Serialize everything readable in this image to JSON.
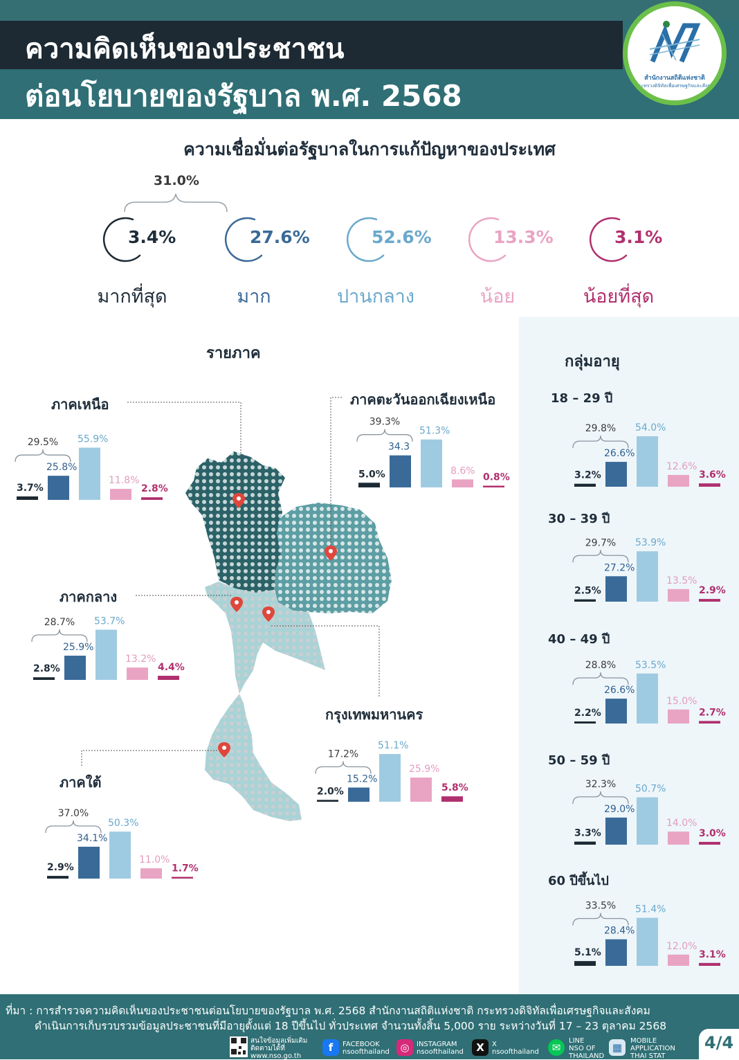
{
  "header": {
    "title_line1": "ความคิดเห็นของประชาชน",
    "title_line2": "ต่อนโยบายของรัฐบาล พ.ศ. 2568",
    "logo_text1": "สำนักงานสถิติแห่งชาติ",
    "logo_text2": "กระทรวงดิจิทัลเพื่อเศรษฐกิจและสังคม"
  },
  "subtitle": "ความเชื่อมั่นต่อรัฐบาลในการแก้ปัญหาของประเทศ",
  "overall": {
    "group_sum": "31.0%",
    "items": [
      {
        "value": "3.4%",
        "label": "มากที่สุด",
        "color": "#1d2a33"
      },
      {
        "value": "27.6%",
        "label": "มาก",
        "color": "#3a6a98"
      },
      {
        "value": "52.6%",
        "label": "ปานกลาง",
        "color": "#6aa8cc"
      },
      {
        "value": "13.3%",
        "label": "น้อย",
        "color": "#e9a4c3"
      },
      {
        "value": "3.1%",
        "label": "น้อยที่สุด",
        "color": "#b0306e"
      }
    ]
  },
  "colors": {
    "very_high": "#1d2a33",
    "high": "#3a6a98",
    "medium": "#9fcbe2",
    "low": "#e9a4c3",
    "very_low": "#b0306e",
    "header": "#2f6f75",
    "accent_green": "#6cc04a"
  },
  "sections": {
    "region": "รายภาค",
    "age": "กลุ่มอายุ"
  },
  "chart_data": [
    {
      "type": "bar",
      "group": "region",
      "title": "ภาคเหนือ",
      "values": [
        3.7,
        25.8,
        55.9,
        11.8,
        2.8
      ],
      "labels": [
        "3.7%",
        "25.8%",
        "55.9%",
        "11.8%",
        "2.8%"
      ],
      "sum_label": "29.5%"
    },
    {
      "type": "bar",
      "group": "region",
      "title": "ภาคตะวันออกเฉียงเหนือ",
      "values": [
        5.0,
        34.3,
        51.3,
        8.6,
        0.8
      ],
      "labels": [
        "5.0%",
        "34.3",
        "51.3%",
        "8.6%",
        "0.8%"
      ],
      "sum_label": "39.3%"
    },
    {
      "type": "bar",
      "group": "region",
      "title": "ภาคกลาง",
      "values": [
        2.8,
        25.9,
        53.7,
        13.2,
        4.4
      ],
      "labels": [
        "2.8%",
        "25.9%",
        "53.7%",
        "13.2%",
        "4.4%"
      ],
      "sum_label": "28.7%"
    },
    {
      "type": "bar",
      "group": "region",
      "title": "กรุงเทพมหานคร",
      "values": [
        2.0,
        15.2,
        51.1,
        25.9,
        5.8
      ],
      "labels": [
        "2.0%",
        "15.2%",
        "51.1%",
        "25.9%",
        "5.8%"
      ],
      "sum_label": "17.2%"
    },
    {
      "type": "bar",
      "group": "region",
      "title": "ภาคใต้",
      "values": [
        2.9,
        34.1,
        50.3,
        11.0,
        1.7
      ],
      "labels": [
        "2.9%",
        "34.1%",
        "50.3%",
        "11.0%",
        "1.7%"
      ],
      "sum_label": "37.0%"
    },
    {
      "type": "bar",
      "group": "age",
      "title": "18 – 29 ปี",
      "values": [
        3.2,
        26.6,
        54.0,
        12.6,
        3.6
      ],
      "labels": [
        "3.2%",
        "26.6%",
        "54.0%",
        "12.6%",
        "3.6%"
      ],
      "sum_label": "29.8%"
    },
    {
      "type": "bar",
      "group": "age",
      "title": "30 – 39 ปี",
      "values": [
        2.5,
        27.2,
        53.9,
        13.5,
        2.9
      ],
      "labels": [
        "2.5%",
        "27.2%",
        "53.9%",
        "13.5%",
        "2.9%"
      ],
      "sum_label": "29.7%"
    },
    {
      "type": "bar",
      "group": "age",
      "title": "40 – 49 ปี",
      "values": [
        2.2,
        26.6,
        53.5,
        15.0,
        2.7
      ],
      "labels": [
        "2.2%",
        "26.6%",
        "53.5%",
        "15.0%",
        "2.7%"
      ],
      "sum_label": "28.8%"
    },
    {
      "type": "bar",
      "group": "age",
      "title": "50 – 59 ปี",
      "values": [
        3.3,
        29.0,
        50.7,
        14.0,
        3.0
      ],
      "labels": [
        "3.3%",
        "29.0%",
        "50.7%",
        "14.0%",
        "3.0%"
      ],
      "sum_label": "32.3%"
    },
    {
      "type": "bar",
      "group": "age",
      "title": "60 ปีขึ้นไป",
      "values": [
        5.1,
        28.4,
        51.4,
        12.0,
        3.1
      ],
      "labels": [
        "5.1%",
        "28.4%",
        "51.4%",
        "12.0%",
        "3.1%"
      ],
      "sum_label": "33.5%"
    }
  ],
  "footer": {
    "source_line1": "ที่มา : การสำรวจความคิดเห็นของประชาชนต่อนโยบายของรัฐบาล พ.ศ. 2568 สำนักงานสถิติแห่งชาติ  กระทรวงดิจิทัลเพื่อเศรษฐกิจและสังคม",
    "source_line2": "ดำเนินการเก็บรวบรวมข้อมูลประชาชนที่มีอายุตั้งแต่ 18 ปีขึ้นไป ทั่วประเทศ จำนวนทั้งสิ้น 5,000 ราย ระหว่างวันที่ 17 – 23 ตุลาคม 2568",
    "more_info": "สนใจข้อมูลเพิ่มเติม",
    "follow": "ติดตามได้ที่",
    "website": "www.nso.go.th",
    "facebook_label": "FACEBOOK",
    "facebook_handle": "nsoofthailand",
    "instagram_label": "INSTAGRAM",
    "instagram_handle": "nsoofthailand",
    "x_label": "X",
    "x_handle": "nsoofthailand",
    "line_label": "LINE",
    "line_l1": "NSO OF",
    "line_l2": "THAILAND",
    "app_l1": "MOBILE",
    "app_l2": "APPLICATION",
    "app_l3": "THAI STAT",
    "page": "4/4"
  }
}
